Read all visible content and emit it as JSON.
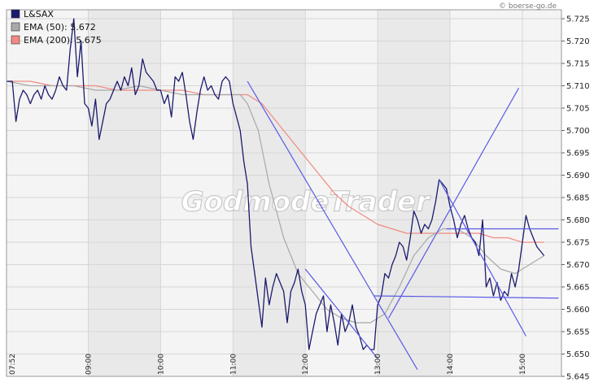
{
  "source_label": "© boerse-go.de",
  "watermark": "GodmodeTrader",
  "chart_data": {
    "type": "line",
    "ylim": [
      5.645,
      5.727
    ],
    "yticks": [
      5.645,
      5.65,
      5.655,
      5.66,
      5.665,
      5.67,
      5.675,
      5.68,
      5.685,
      5.69,
      5.695,
      5.7,
      5.705,
      5.71,
      5.715,
      5.72,
      5.725
    ],
    "ytick_labels": [
      "5.645",
      "5.650",
      "5.655",
      "5.660",
      "5.665",
      "5.670",
      "5.675",
      "5.680",
      "5.685",
      "5.690",
      "5.695",
      "5.700",
      "5.705",
      "5.710",
      "5.715",
      "5.720",
      "5.725"
    ],
    "xlim": [
      7.87,
      15.54
    ],
    "xticks": [
      {
        "t": 7.87,
        "label": "07:52"
      },
      {
        "t": 9,
        "label": "09:00"
      },
      {
        "t": 10,
        "label": "10:00"
      },
      {
        "t": 11,
        "label": "11:00"
      },
      {
        "t": 12,
        "label": "12:00"
      },
      {
        "t": 13,
        "label": "13:00"
      },
      {
        "t": 14,
        "label": "14:00"
      },
      {
        "t": 15,
        "label": "15:00"
      }
    ],
    "grid": true,
    "legend_position": "top-left",
    "colors": {
      "main": "#1a1a6e",
      "ema50": "#a8a8a8",
      "ema200": "#f08a80",
      "trendline": "#5a5ae6",
      "grid": "#d6d6d6",
      "plot_bg": "#efefef"
    },
    "series": [
      {
        "name": "L&SAX",
        "label": "L&SAX",
        "x": [
          7.87,
          7.95,
          8.0,
          8.05,
          8.1,
          8.15,
          8.2,
          8.25,
          8.3,
          8.35,
          8.4,
          8.45,
          8.5,
          8.55,
          8.6,
          8.65,
          8.7,
          8.75,
          8.8,
          8.85,
          8.9,
          8.95,
          9.0,
          9.05,
          9.1,
          9.15,
          9.2,
          9.25,
          9.3,
          9.35,
          9.4,
          9.45,
          9.5,
          9.55,
          9.6,
          9.65,
          9.7,
          9.75,
          9.8,
          9.85,
          9.9,
          9.95,
          10.0,
          10.05,
          10.1,
          10.15,
          10.2,
          10.25,
          10.3,
          10.35,
          10.4,
          10.45,
          10.5,
          10.55,
          10.6,
          10.65,
          10.7,
          10.75,
          10.8,
          10.85,
          10.9,
          10.95,
          11.0,
          11.05,
          11.1,
          11.15,
          11.2,
          11.25,
          11.3,
          11.35,
          11.4,
          11.45,
          11.5,
          11.55,
          11.6,
          11.65,
          11.7,
          11.75,
          11.8,
          11.85,
          11.9,
          11.95,
          12.0,
          12.05,
          12.1,
          12.15,
          12.2,
          12.25,
          12.3,
          12.35,
          12.4,
          12.45,
          12.5,
          12.55,
          12.6,
          12.65,
          12.7,
          12.75,
          12.8,
          12.85,
          12.9,
          12.95,
          13.0,
          13.05,
          13.1,
          13.15,
          13.2,
          13.25,
          13.3,
          13.35,
          13.4,
          13.45,
          13.5,
          13.55,
          13.6,
          13.65,
          13.7,
          13.75,
          13.8,
          13.85,
          13.9,
          13.95,
          14.0,
          14.05,
          14.1,
          14.15,
          14.2,
          14.25,
          14.3,
          14.35,
          14.4,
          14.45,
          14.5,
          14.55,
          14.6,
          14.65,
          14.7,
          14.75,
          14.8,
          14.85,
          14.9,
          14.95,
          15.0,
          15.05,
          15.1,
          15.15,
          15.2,
          15.25,
          15.3
        ],
        "values": [
          5.711,
          5.711,
          5.702,
          5.707,
          5.709,
          5.708,
          5.706,
          5.708,
          5.709,
          5.707,
          5.71,
          5.708,
          5.707,
          5.709,
          5.712,
          5.71,
          5.709,
          5.718,
          5.725,
          5.712,
          5.72,
          5.706,
          5.705,
          5.701,
          5.707,
          5.698,
          5.702,
          5.706,
          5.707,
          5.709,
          5.711,
          5.709,
          5.712,
          5.71,
          5.714,
          5.708,
          5.71,
          5.716,
          5.713,
          5.712,
          5.711,
          5.709,
          5.709,
          5.706,
          5.708,
          5.703,
          5.712,
          5.711,
          5.713,
          5.708,
          5.702,
          5.698,
          5.704,
          5.709,
          5.712,
          5.709,
          5.71,
          5.708,
          5.707,
          5.711,
          5.712,
          5.711,
          5.706,
          5.703,
          5.7,
          5.693,
          5.688,
          5.674,
          5.668,
          5.662,
          5.656,
          5.667,
          5.661,
          5.665,
          5.668,
          5.666,
          5.664,
          5.657,
          5.664,
          5.666,
          5.669,
          5.664,
          5.661,
          5.651,
          5.655,
          5.659,
          5.661,
          5.663,
          5.655,
          5.661,
          5.657,
          5.652,
          5.659,
          5.655,
          5.657,
          5.661,
          5.656,
          5.654,
          5.651,
          5.652,
          5.651,
          5.651,
          5.661,
          5.663,
          5.668,
          5.667,
          5.67,
          5.672,
          5.675,
          5.674,
          5.671,
          5.676,
          5.682,
          5.68,
          5.677,
          5.679,
          5.678,
          5.68,
          5.684,
          5.689,
          5.688,
          5.687,
          5.683,
          5.68,
          5.676,
          5.679,
          5.681,
          5.678,
          5.676,
          5.675,
          5.672,
          5.68,
          5.665,
          5.667,
          5.663,
          5.666,
          5.662,
          5.664,
          5.663,
          5.668,
          5.665,
          5.669,
          5.675,
          5.681,
          5.678,
          5.676,
          5.674,
          5.673,
          5.672
        ]
      },
      {
        "name": "EMA (50)",
        "label": "EMA (50): 5.672",
        "x": [
          7.87,
          8.2,
          8.5,
          8.8,
          9.1,
          9.4,
          9.7,
          10.0,
          10.3,
          10.6,
          10.9,
          11.1,
          11.2,
          11.35,
          11.5,
          11.7,
          11.9,
          12.1,
          12.3,
          12.5,
          12.7,
          12.9,
          13.1,
          13.3,
          13.5,
          13.7,
          13.9,
          14.1,
          14.3,
          14.5,
          14.7,
          14.9,
          15.1,
          15.3
        ],
        "values": [
          5.711,
          5.71,
          5.71,
          5.71,
          5.709,
          5.709,
          5.71,
          5.709,
          5.708,
          5.708,
          5.708,
          5.708,
          5.706,
          5.7,
          5.688,
          5.676,
          5.668,
          5.664,
          5.66,
          5.658,
          5.657,
          5.657,
          5.659,
          5.665,
          5.672,
          5.676,
          5.678,
          5.678,
          5.676,
          5.672,
          5.669,
          5.668,
          5.67,
          5.672
        ]
      },
      {
        "name": "EMA (200)",
        "label": "EMA (200): 5.675",
        "x": [
          7.87,
          8.2,
          8.5,
          8.8,
          9.1,
          9.4,
          9.7,
          10.0,
          10.3,
          10.6,
          10.9,
          11.2,
          11.4,
          11.6,
          11.8,
          12.0,
          12.2,
          12.4,
          12.6,
          12.8,
          13.0,
          13.2,
          13.4,
          13.6,
          13.8,
          14.0,
          14.2,
          14.4,
          14.6,
          14.8,
          15.0,
          15.2,
          15.3
        ],
        "values": [
          5.711,
          5.711,
          5.71,
          5.71,
          5.71,
          5.709,
          5.709,
          5.709,
          5.709,
          5.708,
          5.708,
          5.708,
          5.706,
          5.702,
          5.698,
          5.694,
          5.69,
          5.686,
          5.683,
          5.681,
          5.679,
          5.678,
          5.677,
          5.677,
          5.677,
          5.677,
          5.677,
          5.677,
          5.676,
          5.676,
          5.675,
          5.675,
          5.675
        ]
      }
    ],
    "trendlines": [
      {
        "x": [
          11.2,
          13.55
        ],
        "y": [
          5.711,
          5.6465
        ]
      },
      {
        "x": [
          12.0,
          13.0
        ],
        "y": [
          5.669,
          5.649
        ]
      },
      {
        "x": [
          13.15,
          14.95
        ],
        "y": [
          5.658,
          5.7095
        ]
      },
      {
        "x": [
          13.85,
          15.05
        ],
        "y": [
          5.689,
          5.654
        ]
      },
      {
        "x": [
          12.95,
          15.5
        ],
        "y": [
          5.663,
          5.6625
        ]
      },
      {
        "x": [
          13.95,
          15.5
        ],
        "y": [
          5.678,
          5.678
        ]
      }
    ]
  }
}
